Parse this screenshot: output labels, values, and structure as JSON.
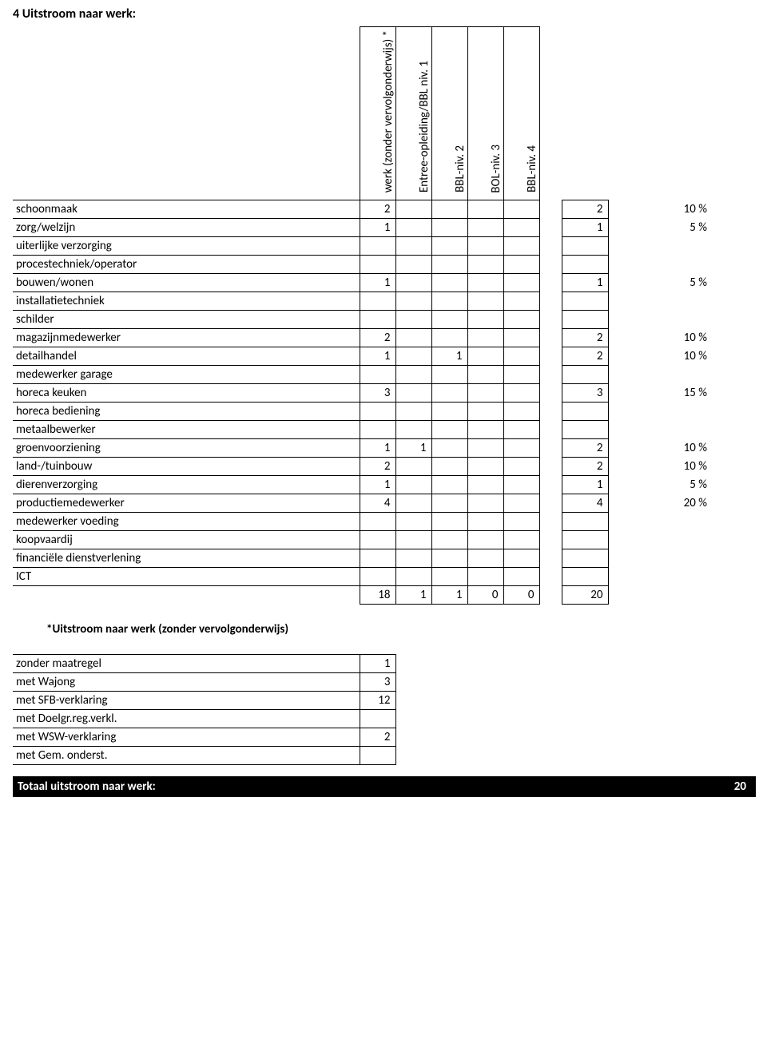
{
  "heading": "4 Uitstroom naar werk:",
  "columns": [
    "werk (zonder vervolgonderwijs) *",
    "Entree-opleiding/BBL niv. 1",
    "BBL-niv. 2",
    "BOL-niv. 3",
    "BBL-niv. 4"
  ],
  "rows": [
    {
      "label": "schoonmaak",
      "c": [
        "2",
        "",
        "",
        "",
        ""
      ],
      "total": "2",
      "pct": "10 %"
    },
    {
      "label": "zorg/welzijn",
      "c": [
        "1",
        "",
        "",
        "",
        ""
      ],
      "total": "1",
      "pct": "5 %"
    },
    {
      "label": "uiterlijke verzorging",
      "c": [
        "",
        "",
        "",
        "",
        ""
      ],
      "total": "",
      "pct": ""
    },
    {
      "label": "procestechniek/operator",
      "c": [
        "",
        "",
        "",
        "",
        ""
      ],
      "total": "",
      "pct": ""
    },
    {
      "label": "bouwen/wonen",
      "c": [
        "1",
        "",
        "",
        "",
        ""
      ],
      "total": "1",
      "pct": "5 %"
    },
    {
      "label": "installatietechniek",
      "c": [
        "",
        "",
        "",
        "",
        ""
      ],
      "total": "",
      "pct": ""
    },
    {
      "label": "schilder",
      "c": [
        "",
        "",
        "",
        "",
        ""
      ],
      "total": "",
      "pct": ""
    },
    {
      "label": "magazijnmedewerker",
      "c": [
        "2",
        "",
        "",
        "",
        ""
      ],
      "total": "2",
      "pct": "10 %"
    },
    {
      "label": "detailhandel",
      "c": [
        "1",
        "",
        "1",
        "",
        ""
      ],
      "total": "2",
      "pct": "10 %"
    },
    {
      "label": "medewerker garage",
      "c": [
        "",
        "",
        "",
        "",
        ""
      ],
      "total": "",
      "pct": ""
    },
    {
      "label": "horeca keuken",
      "c": [
        "3",
        "",
        "",
        "",
        ""
      ],
      "total": "3",
      "pct": "15 %"
    },
    {
      "label": "horeca bediening",
      "c": [
        "",
        "",
        "",
        "",
        ""
      ],
      "total": "",
      "pct": ""
    },
    {
      "label": "metaalbewerker",
      "c": [
        "",
        "",
        "",
        "",
        ""
      ],
      "total": "",
      "pct": ""
    },
    {
      "label": "groenvoorziening",
      "c": [
        "1",
        "1",
        "",
        "",
        ""
      ],
      "total": "2",
      "pct": "10 %"
    },
    {
      "label": "land-/tuinbouw",
      "c": [
        "2",
        "",
        "",
        "",
        ""
      ],
      "total": "2",
      "pct": "10 %"
    },
    {
      "label": "dierenverzorging",
      "c": [
        "1",
        "",
        "",
        "",
        ""
      ],
      "total": "1",
      "pct": "5 %"
    },
    {
      "label": "productiemedewerker",
      "c": [
        "4",
        "",
        "",
        "",
        ""
      ],
      "total": "4",
      "pct": "20 %"
    },
    {
      "label": "medewerker voeding",
      "c": [
        "",
        "",
        "",
        "",
        ""
      ],
      "total": "",
      "pct": ""
    },
    {
      "label": "koopvaardij",
      "c": [
        "",
        "",
        "",
        "",
        ""
      ],
      "total": "",
      "pct": ""
    },
    {
      "label": "financiële dienstverlening",
      "c": [
        "",
        "",
        "",
        "",
        ""
      ],
      "total": "",
      "pct": ""
    },
    {
      "label": "ICT",
      "c": [
        "",
        "",
        "",
        "",
        ""
      ],
      "total": "",
      "pct": ""
    }
  ],
  "colTotals": {
    "c": [
      "18",
      "1",
      "1",
      "0",
      "0"
    ],
    "total": "20",
    "pct": ""
  },
  "footnote": "*Uitstroom naar werk (zonder vervolgonderwijs)",
  "footerRows": [
    {
      "label": "zonder maatregel",
      "val": "1"
    },
    {
      "label": "met Wajong",
      "val": "3"
    },
    {
      "label": "met SFB-verklaring",
      "val": "12"
    },
    {
      "label": "met Doelgr.reg.verkl.",
      "val": ""
    },
    {
      "label": "met WSW-verklaring",
      "val": "2"
    },
    {
      "label": "met Gem. onderst.",
      "val": ""
    }
  ],
  "totalBar": {
    "label": "Totaal uitstroom naar werk:",
    "val": "20"
  }
}
